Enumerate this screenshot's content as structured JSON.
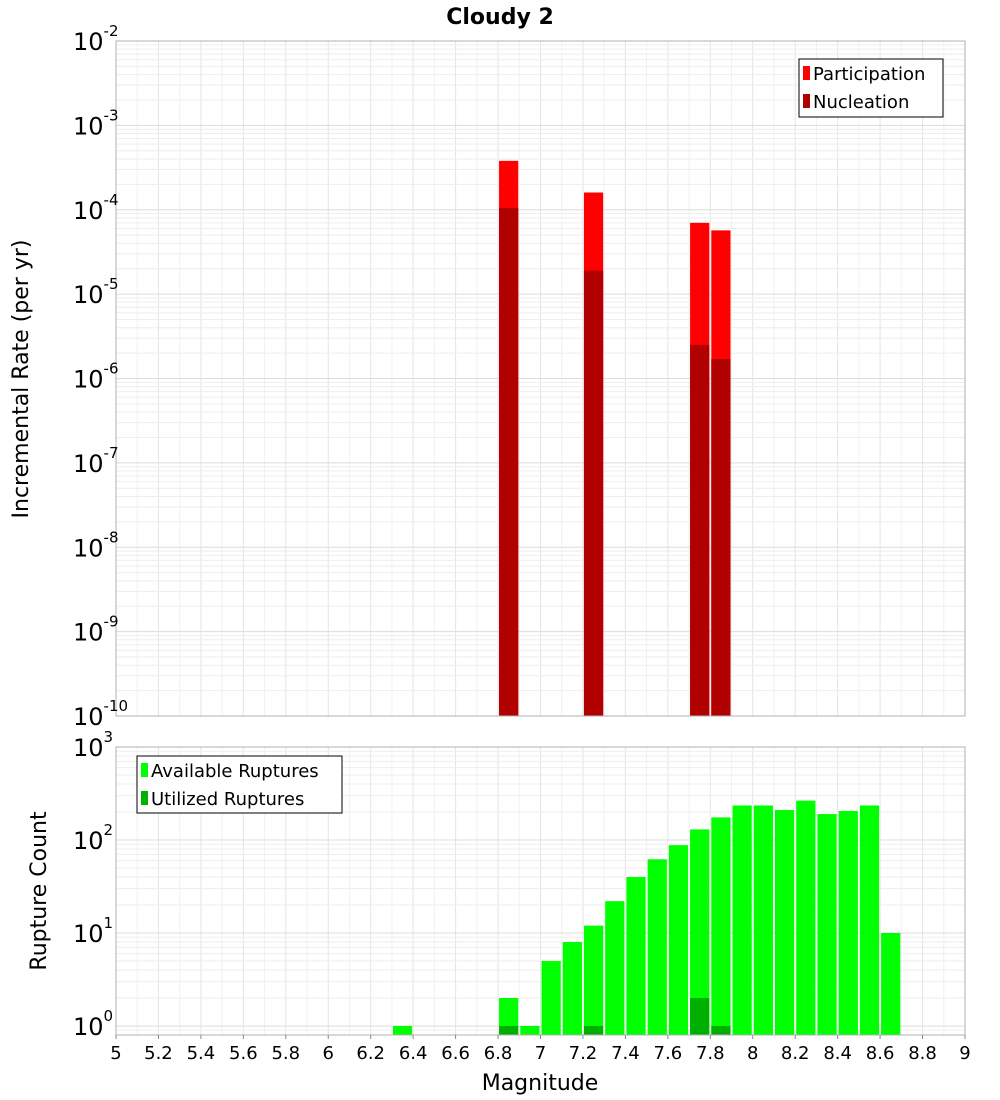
{
  "chart_data": [
    {
      "type": "bar",
      "title": "Cloudy 2",
      "xlabel": "Magnitude",
      "ylabel": "Incremental Rate (per yr)",
      "y_scale": "log",
      "ylim": [
        1e-10,
        0.01
      ],
      "xlim": [
        5,
        9
      ],
      "y_ticks": [
        {
          "base": "10",
          "exp": "-2",
          "value": 0.01
        },
        {
          "base": "10",
          "exp": "-3",
          "value": 0.001
        },
        {
          "base": "10",
          "exp": "-4",
          "value": 0.0001
        },
        {
          "base": "10",
          "exp": "-5",
          "value": 1e-05
        },
        {
          "base": "10",
          "exp": "-6",
          "value": 1e-06
        },
        {
          "base": "10",
          "exp": "-7",
          "value": 1e-07
        },
        {
          "base": "10",
          "exp": "-8",
          "value": 1e-08
        },
        {
          "base": "10",
          "exp": "-9",
          "value": 1e-09
        },
        {
          "base": "10",
          "exp": "-10",
          "value": 1e-10
        }
      ],
      "legend_position": "top-right",
      "bar_width": 0.1,
      "series": [
        {
          "name": "Participation",
          "color": "#ff0000",
          "x": [
            6.85,
            7.25,
            7.75,
            7.85
          ],
          "values": [
            0.00038,
            0.00016,
            7e-05,
            5.7e-05
          ]
        },
        {
          "name": "Nucleation",
          "color": "#b00000",
          "x": [
            6.85,
            7.25,
            7.75,
            7.85
          ],
          "values": [
            0.000105,
            1.9e-05,
            2.5e-06,
            1.7e-06
          ]
        }
      ]
    },
    {
      "type": "bar",
      "title": "",
      "xlabel": "Magnitude",
      "ylabel": "Rupture Count",
      "y_scale": "log",
      "ylim": [
        0.8,
        1000
      ],
      "xlim": [
        5,
        9
      ],
      "x_ticks": [
        "5",
        "5.2",
        "5.4",
        "5.6",
        "5.8",
        "6",
        "6.2",
        "6.4",
        "6.6",
        "6.8",
        "7",
        "7.2",
        "7.4",
        "7.6",
        "7.8",
        "8",
        "8.2",
        "8.4",
        "8.6",
        "8.8",
        "9"
      ],
      "y_ticks": [
        {
          "base": "10",
          "exp": "3",
          "value": 1000
        },
        {
          "base": "10",
          "exp": "2",
          "value": 100
        },
        {
          "base": "10",
          "exp": "1",
          "value": 10
        },
        {
          "base": "10",
          "exp": "0",
          "value": 1
        }
      ],
      "legend_position": "top-left",
      "bar_width": 0.1,
      "series": [
        {
          "name": "Available Ruptures",
          "color": "#00ff00",
          "x": [
            6.35,
            6.85,
            6.95,
            7.05,
            7.15,
            7.25,
            7.35,
            7.45,
            7.55,
            7.65,
            7.75,
            7.85,
            7.95,
            8.05,
            8.15,
            8.25,
            8.35,
            8.45,
            8.55,
            8.65
          ],
          "values": [
            1,
            2,
            1,
            5,
            8,
            12,
            22,
            40,
            62,
            88,
            130,
            175,
            235,
            235,
            210,
            265,
            190,
            205,
            235,
            10
          ]
        },
        {
          "name": "Utilized Ruptures",
          "color": "#00b000",
          "x": [
            6.85,
            7.25,
            7.75,
            7.85
          ],
          "values": [
            1,
            1,
            2,
            1
          ]
        }
      ]
    }
  ]
}
